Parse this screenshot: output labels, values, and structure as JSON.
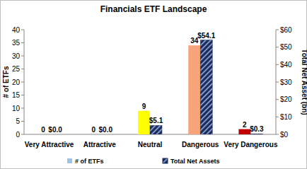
{
  "chart_data": {
    "type": "bar",
    "title": "Financials ETF Landscape",
    "y_label": "# of ETFs",
    "y2_label": "Total Net Asset (bn)",
    "categories": [
      "Very Attractive",
      "Attractive",
      "Neutral",
      "Dangerous",
      "Very Dangerous"
    ],
    "series": [
      {
        "name": "# of ETFs",
        "color": "#9dc3e6",
        "colors": [
          "#00b050",
          "#92d050",
          "#ffff00",
          "#f7a47a",
          "#c00000"
        ],
        "values": [
          0,
          0,
          9,
          34,
          2
        ]
      },
      {
        "name": "Total Net Assets",
        "color": "#1f2a5a",
        "axis": "y2",
        "values": [
          0,
          0,
          5.1,
          54.1,
          0.3
        ],
        "value_labels": [
          "$0.0",
          "$0.0",
          "$5.1",
          "$54.1",
          "$0.3"
        ]
      }
    ],
    "ylim": [
      0,
      40
    ],
    "yticks": [
      0,
      5,
      10,
      15,
      20,
      25,
      30,
      35,
      40
    ],
    "y2lim": [
      0,
      60
    ],
    "y2ticks": [
      {
        "value": 0,
        "label": "$0"
      },
      {
        "value": 10,
        "label": "$10"
      },
      {
        "value": 20,
        "label": "$20"
      },
      {
        "value": 30,
        "label": "$30"
      },
      {
        "value": 40,
        "label": "$40"
      },
      {
        "value": 50,
        "label": "$50"
      },
      {
        "value": 60,
        "label": "$60"
      }
    ],
    "grid": false,
    "legend": "bottom",
    "data_labels": true
  }
}
